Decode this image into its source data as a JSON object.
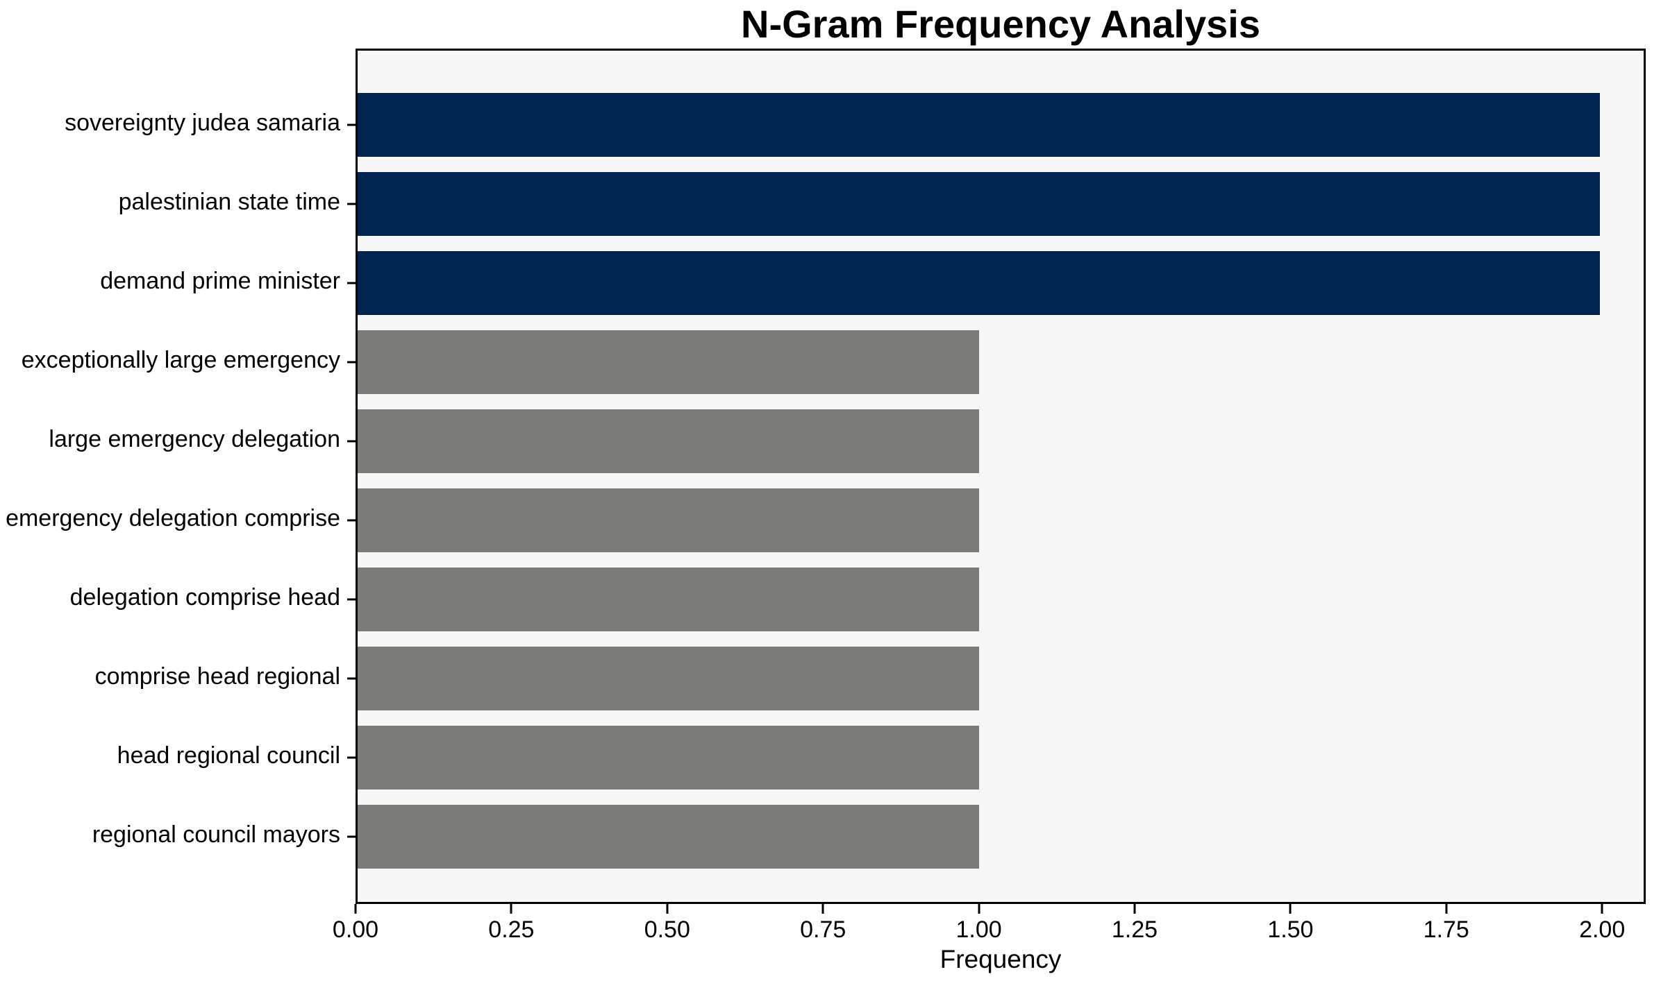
{
  "figure": {
    "background": "#ffffff"
  },
  "chart_data": {
    "type": "bar",
    "orientation": "horizontal",
    "title": "N-Gram Frequency Analysis",
    "xlabel": "Frequency",
    "ylabel": "",
    "categories": [
      "sovereignty judea samaria",
      "palestinian state time",
      "demand prime minister",
      "exceptionally large emergency",
      "large emergency delegation",
      "emergency delegation comprise",
      "delegation comprise head",
      "comprise head regional",
      "head regional council",
      "regional council mayors"
    ],
    "values": [
      2,
      2,
      2,
      1,
      1,
      1,
      1,
      1,
      1,
      1
    ],
    "bar_colors": [
      "#022450",
      "#022450",
      "#022450",
      "#7b7b78",
      "#7b7b78",
      "#7b7b78",
      "#7b7b78",
      "#7b7b78",
      "#7b7b78",
      "#7b7b78"
    ],
    "colors": {
      "highlight": "#022450",
      "default": "#7b7b78",
      "plot_background": "#f7f7f7",
      "axis": "#000000"
    },
    "xlim": [
      0,
      2.07
    ],
    "x_tick_values": [
      0,
      0.25,
      0.5,
      0.75,
      1.0,
      1.25,
      1.5,
      1.75,
      2.0
    ],
    "x_tick_labels": [
      "0.00",
      "0.25",
      "0.50",
      "0.75",
      "1.00",
      "1.25",
      "1.50",
      "1.75",
      "2.00"
    ],
    "grid": false,
    "legend": false
  }
}
